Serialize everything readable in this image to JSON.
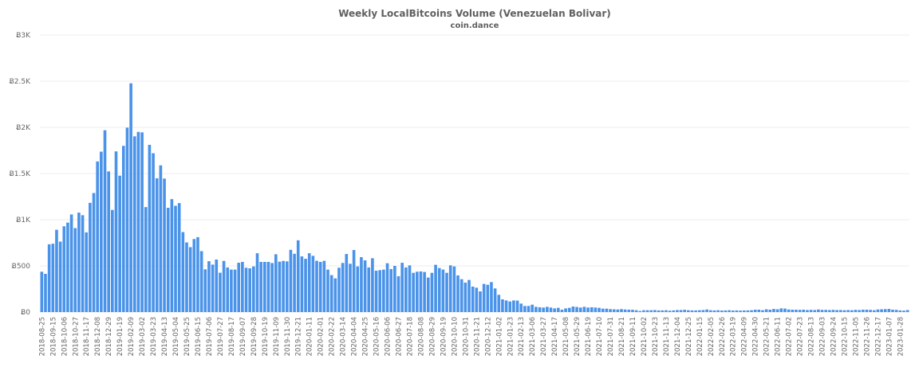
{
  "chart_data": {
    "type": "bar",
    "title": "Weekly LocalBitcoins Volume (Venezuelan Bolivar)",
    "subtitle": "coin.dance",
    "xlabel": "",
    "ylabel": "",
    "ylim": [
      0,
      3000
    ],
    "y_ticks": [
      0,
      500,
      1000,
      1500,
      2000,
      2500,
      3000
    ],
    "y_tick_labels": [
      "Ƀ0",
      "Ƀ500",
      "Ƀ1K",
      "Ƀ1.5K",
      "Ƀ2K",
      "Ƀ2.5K",
      "Ƀ3K"
    ],
    "grid": true,
    "legend": "none",
    "bar_color": "#4a93ea",
    "x_tick_every_n_bars": 3,
    "x_tick_labels": [
      "2018-08-25",
      "2018-09-15",
      "2018-10-06",
      "2018-10-27",
      "2018-11-17",
      "2018-12-08",
      "2018-12-29",
      "2019-01-19",
      "2019-02-09",
      "2019-03-02",
      "2019-03-23",
      "2019-04-13",
      "2019-05-04",
      "2019-05-25",
      "2019-06-15",
      "2019-07-06",
      "2019-07-27",
      "2019-08-17",
      "2019-09-07",
      "2019-09-28",
      "2019-10-19",
      "2019-11-09",
      "2019-11-30",
      "2019-12-21",
      "2020-01-11",
      "2020-02-01",
      "2020-02-22",
      "2020-03-14",
      "2020-04-04",
      "2020-04-25",
      "2020-05-16",
      "2020-06-06",
      "2020-06-27",
      "2020-07-18",
      "2020-08-08",
      "2020-08-29",
      "2020-09-19",
      "2020-10-10",
      "2020-10-31",
      "2020-11-21",
      "2020-12-12",
      "2021-01-02",
      "2021-01-23",
      "2021-02-13",
      "2021-03-06",
      "2021-03-27",
      "2021-04-17",
      "2021-05-08",
      "2021-05-29",
      "2021-06-19",
      "2021-07-10",
      "2021-07-31",
      "2021-08-21",
      "2021-09-11",
      "2021-10-02",
      "2021-10-23",
      "2021-11-13",
      "2021-12-04",
      "2021-12-25",
      "2022-01-15",
      "2022-02-05",
      "2022-02-26",
      "2022-03-19",
      "2022-04-09",
      "2022-04-30",
      "2022-05-21",
      "2022-06-11",
      "2022-07-02",
      "2022-07-23",
      "2022-08-13",
      "2022-09-03",
      "2022-09-24",
      "2022-10-15",
      "2022-11-05",
      "2022-11-26",
      "2022-12-17",
      "2023-01-07",
      "2023-01-28"
    ],
    "values": [
      437,
      414,
      734,
      740,
      891,
      763,
      929,
      969,
      1057,
      909,
      1077,
      1049,
      863,
      1183,
      1289,
      1631,
      1737,
      1969,
      1523,
      1106,
      1740,
      1477,
      1800,
      1997,
      2477,
      1903,
      1951,
      1946,
      1137,
      1811,
      1720,
      1449,
      1589,
      1446,
      1129,
      1223,
      1151,
      1180,
      866,
      754,
      703,
      791,
      811,
      660,
      463,
      551,
      514,
      569,
      426,
      554,
      483,
      460,
      460,
      534,
      543,
      480,
      474,
      494,
      637,
      543,
      543,
      543,
      531,
      626,
      546,
      554,
      549,
      674,
      631,
      777,
      603,
      577,
      637,
      609,
      555,
      543,
      555,
      460,
      400,
      365,
      480,
      532,
      629,
      523,
      672,
      494,
      595,
      560,
      483,
      583,
      448,
      454,
      460,
      529,
      466,
      500,
      388,
      534,
      483,
      506,
      425,
      437,
      440,
      434,
      374,
      425,
      512,
      477,
      460,
      425,
      506,
      494,
      397,
      356,
      319,
      348,
      276,
      264,
      224,
      305,
      296,
      325,
      256,
      187,
      138,
      126,
      115,
      126,
      124,
      92,
      66,
      66,
      80,
      57,
      52,
      49,
      57,
      49,
      40,
      46,
      26,
      40,
      46,
      60,
      55,
      49,
      57,
      49,
      52,
      49,
      46,
      37,
      37,
      32,
      30,
      28,
      32,
      28,
      26,
      25,
      20,
      12,
      20,
      20,
      20,
      22,
      18,
      18,
      20,
      15,
      18,
      22,
      22,
      25,
      20,
      18,
      18,
      20,
      22,
      28,
      20,
      18,
      20,
      17,
      18,
      20,
      17,
      18,
      16,
      18,
      18,
      20,
      26,
      26,
      20,
      30,
      26,
      34,
      30,
      40,
      38,
      28,
      26,
      26,
      24,
      26,
      22,
      24,
      22,
      28,
      24,
      24,
      22,
      24,
      22,
      22,
      20,
      22,
      20,
      24,
      22,
      26,
      26,
      24,
      20,
      28,
      30,
      32,
      34,
      26,
      24,
      18,
      16,
      22
    ]
  }
}
